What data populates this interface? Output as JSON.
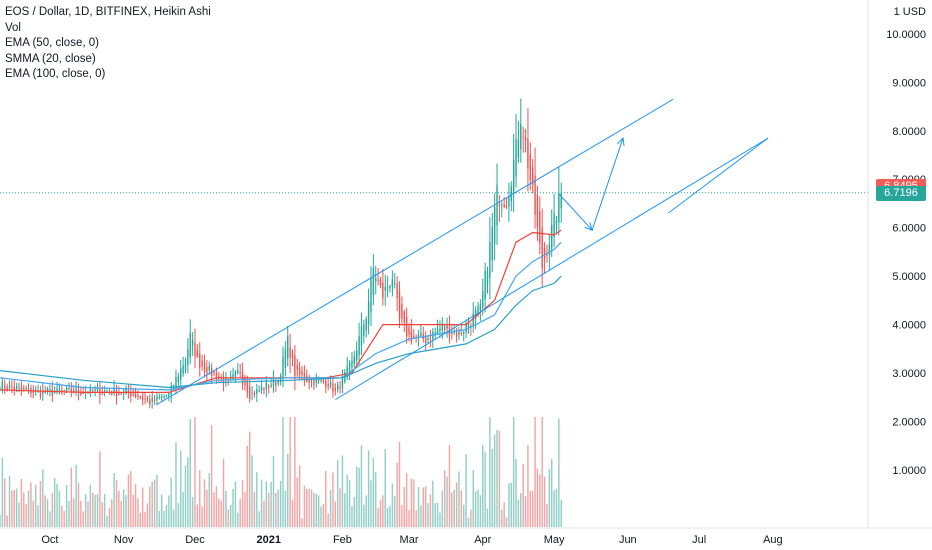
{
  "legend": {
    "title": "EOS / Dollar, 1D, BITFINEX, Heikin Ashi",
    "indicators": [
      "Vol",
      "EMA (50, close, 0)",
      "SMMA (20, close)",
      "EMA (100, close, 0)"
    ]
  },
  "colors": {
    "up": "#26a69a",
    "down": "#ef5350",
    "vol_up": "#8fcfc6",
    "vol_down": "#f5a3a3",
    "ema50": "#42a5f5",
    "smma20": "#f44336",
    "ema100": "#26a3c9",
    "trendline": "#2196f3",
    "dotted": "#26a69a",
    "axis_text": "#131722",
    "tag_red": "#f35b57",
    "tag_green": "#26a69a"
  },
  "price_tags": {
    "high": "6.8495",
    "current": "6.7196"
  },
  "chart_data": {
    "type": "candlestick",
    "y_axis": {
      "currency_label": "1 USD",
      "ticks": [
        "1.0000",
        "2.0000",
        "3.0000",
        "4.0000",
        "5.0000",
        "6.0000",
        "7.0000",
        "8.0000",
        "9.0000",
        "10.0000"
      ],
      "ylim": [
        -0.2,
        10.7
      ]
    },
    "x_axis": {
      "ticks": [
        {
          "label": "Oct",
          "date": "2020-10-01"
        },
        {
          "label": "Nov",
          "date": "2020-11-01"
        },
        {
          "label": "Dec",
          "date": "2020-12-01"
        },
        {
          "label": "2021",
          "date": "2021-01-01",
          "bold": true
        },
        {
          "label": "Feb",
          "date": "2021-02-01"
        },
        {
          "label": "Mar",
          "date": "2021-03-01"
        },
        {
          "label": "Apr",
          "date": "2021-04-01"
        },
        {
          "label": "May",
          "date": "2021-05-01"
        },
        {
          "label": "Jun",
          "date": "2021-06-01"
        },
        {
          "label": "Jul",
          "date": "2021-07-01"
        },
        {
          "label": "Aug",
          "date": "2021-08-01"
        }
      ],
      "start": "2020-09-10",
      "end": "2021-09-10"
    },
    "key_closes": [
      [
        "2020-09-10",
        2.75
      ],
      [
        "2020-09-25",
        2.6
      ],
      [
        "2020-10-10",
        2.62
      ],
      [
        "2020-10-25",
        2.62
      ],
      [
        "2020-11-05",
        2.58
      ],
      [
        "2020-11-12",
        2.4
      ],
      [
        "2020-11-20",
        2.55
      ],
      [
        "2020-11-27",
        3.3
      ],
      [
        "2020-11-29",
        3.75
      ],
      [
        "2020-12-02",
        3.25
      ],
      [
        "2020-12-08",
        3.0
      ],
      [
        "2020-12-15",
        2.8
      ],
      [
        "2020-12-20",
        3.05
      ],
      [
        "2020-12-24",
        2.55
      ],
      [
        "2020-12-30",
        2.7
      ],
      [
        "2021-01-05",
        2.85
      ],
      [
        "2021-01-09",
        3.65
      ],
      [
        "2021-01-12",
        3.0
      ],
      [
        "2021-01-18",
        2.85
      ],
      [
        "2021-01-26",
        2.8
      ],
      [
        "2021-01-29",
        2.6
      ],
      [
        "2021-02-05",
        3.2
      ],
      [
        "2021-02-11",
        4.2
      ],
      [
        "2021-02-14",
        5.15
      ],
      [
        "2021-02-18",
        4.6
      ],
      [
        "2021-02-22",
        5.0
      ],
      [
        "2021-02-25",
        4.1
      ],
      [
        "2021-03-01",
        3.75
      ],
      [
        "2021-03-08",
        3.7
      ],
      [
        "2021-03-15",
        3.95
      ],
      [
        "2021-03-22",
        3.8
      ],
      [
        "2021-03-26",
        4.05
      ],
      [
        "2021-03-31",
        4.3
      ],
      [
        "2021-04-04",
        5.6
      ],
      [
        "2021-04-07",
        6.7
      ],
      [
        "2021-04-11",
        6.6
      ],
      [
        "2021-04-15",
        7.6
      ],
      [
        "2021-04-17",
        8.35
      ],
      [
        "2021-04-19",
        7.7
      ],
      [
        "2021-04-23",
        6.3
      ],
      [
        "2021-04-26",
        5.2
      ],
      [
        "2021-04-28",
        5.6
      ],
      [
        "2021-05-01",
        6.1
      ],
      [
        "2021-05-04",
        6.72
      ]
    ],
    "ma_lines": [
      {
        "name": "SMMA (20, close)",
        "color_key": "smma20",
        "points": [
          [
            "2020-09-10",
            2.65
          ],
          [
            "2020-10-15",
            2.6
          ],
          [
            "2020-11-20",
            2.6
          ],
          [
            "2020-12-10",
            2.9
          ],
          [
            "2021-01-01",
            2.9
          ],
          [
            "2021-01-25",
            2.9
          ],
          [
            "2021-02-05",
            3.0
          ],
          [
            "2021-02-18",
            4.0
          ],
          [
            "2021-03-01",
            4.0
          ],
          [
            "2021-03-25",
            4.0
          ],
          [
            "2021-04-06",
            4.5
          ],
          [
            "2021-04-15",
            5.7
          ],
          [
            "2021-04-22",
            5.9
          ],
          [
            "2021-05-01",
            5.85
          ],
          [
            "2021-05-04",
            5.95
          ]
        ]
      },
      {
        "name": "EMA (50, close, 0)",
        "color_key": "ema50",
        "points": [
          [
            "2020-09-10",
            2.9
          ],
          [
            "2020-10-15",
            2.7
          ],
          [
            "2020-11-20",
            2.65
          ],
          [
            "2020-12-10",
            2.85
          ],
          [
            "2021-01-10",
            2.9
          ],
          [
            "2021-02-01",
            2.9
          ],
          [
            "2021-02-15",
            3.4
          ],
          [
            "2021-03-01",
            3.7
          ],
          [
            "2021-03-25",
            3.9
          ],
          [
            "2021-04-06",
            4.2
          ],
          [
            "2021-04-15",
            5.0
          ],
          [
            "2021-04-22",
            5.3
          ],
          [
            "2021-05-01",
            5.55
          ],
          [
            "2021-05-04",
            5.7
          ]
        ]
      },
      {
        "name": "EMA (100, close, 0)",
        "color_key": "ema100",
        "points": [
          [
            "2020-09-10",
            3.05
          ],
          [
            "2020-10-15",
            2.85
          ],
          [
            "2020-11-20",
            2.7
          ],
          [
            "2020-12-10",
            2.8
          ],
          [
            "2021-01-10",
            2.85
          ],
          [
            "2021-02-01",
            2.9
          ],
          [
            "2021-02-15",
            3.2
          ],
          [
            "2021-03-01",
            3.4
          ],
          [
            "2021-03-25",
            3.6
          ],
          [
            "2021-04-06",
            3.9
          ],
          [
            "2021-04-15",
            4.4
          ],
          [
            "2021-04-22",
            4.7
          ],
          [
            "2021-05-01",
            4.85
          ],
          [
            "2021-05-04",
            5.0
          ]
        ]
      }
    ],
    "annotations": {
      "trendline_upper": [
        [
          "2021-01-20",
          2.45
        ],
        [
          "2021-06-20",
          8.65
        ]
      ],
      "trendline_lower": [
        [
          "2020-11-15",
          2.35
        ],
        [
          "2021-06-18",
          6.3
        ],
        [
          "2021-07-30",
          7.85
        ]
      ],
      "trendline_upper_start": [
        [
          "2020-11-15",
          2.35
        ]
      ],
      "arrow_path": [
        [
          "2021-05-03",
          6.7
        ],
        [
          "2021-05-17",
          5.95
        ],
        [
          "2021-05-30",
          7.85
        ]
      ],
      "dotted_level": 6.72
    }
  }
}
